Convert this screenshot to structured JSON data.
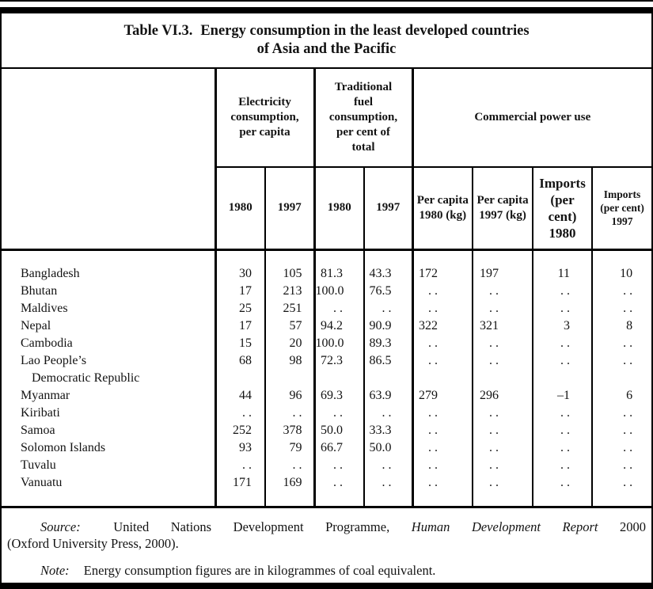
{
  "title": {
    "label": "Table VI.3.",
    "line1": "Energy consumption in the least developed countries",
    "line2": "of Asia and the Pacific"
  },
  "table": {
    "groups": [
      "Electricity consumption, per capita",
      "Traditional fuel consumption, per cent of total",
      "Commercial power use"
    ],
    "columns": [
      "1980",
      "1997",
      "1980",
      "1997",
      "Per capita 1980 (kg)",
      "Per capita 1997 (kg)",
      "Imports (per cent) 1980",
      "Imports (per cent) 1997"
    ],
    "missing_marker": ". .",
    "rows": [
      {
        "country": "Bangladesh",
        "values": [
          "30",
          "105",
          "81.3",
          "43.3",
          "172",
          "197",
          "11",
          "10"
        ]
      },
      {
        "country": "Bhutan",
        "values": [
          "17",
          "213",
          "100.0",
          "76.5",
          ". .",
          ". .",
          ". .",
          ". ."
        ]
      },
      {
        "country": "Maldives",
        "values": [
          "25",
          "251",
          ". .",
          ". .",
          ". .",
          ". .",
          ". .",
          ". ."
        ]
      },
      {
        "country": "Nepal",
        "values": [
          "17",
          "57",
          "94.2",
          "90.9",
          "322",
          "321",
          "3",
          "8"
        ]
      },
      {
        "country": "Cambodia",
        "values": [
          "15",
          "20",
          "100.0",
          "89.3",
          ". .",
          ". .",
          ". .",
          ". ."
        ]
      },
      {
        "country": "Lao People’s",
        "country_line2": "Democratic Republic",
        "values": [
          "68",
          "98",
          "72.3",
          "86.5",
          ". .",
          ". .",
          ". .",
          ". ."
        ]
      },
      {
        "country": "Myanmar",
        "values": [
          "44",
          "96",
          "69.3",
          "63.9",
          "279",
          "296",
          "–1",
          "6"
        ]
      },
      {
        "country": "Kiribati",
        "values": [
          ". .",
          ". .",
          ". .",
          ". .",
          ". .",
          ". .",
          ". .",
          ". ."
        ]
      },
      {
        "country": "Samoa",
        "values": [
          "252",
          "378",
          "50.0",
          "33.3",
          ". .",
          ". .",
          ". .",
          ". ."
        ]
      },
      {
        "country": "Solomon Islands",
        "values": [
          "93",
          "79",
          "66.7",
          "50.0",
          ". .",
          ". .",
          ". .",
          ". ."
        ]
      },
      {
        "country": "Tuvalu",
        "values": [
          ". .",
          ". .",
          ". .",
          ". .",
          ". .",
          ". .",
          ". .",
          ". ."
        ]
      },
      {
        "country": "Vanuatu",
        "values": [
          "171",
          "169",
          ". .",
          ". .",
          ". .",
          ". .",
          ". .",
          ". ."
        ]
      }
    ]
  },
  "footer": {
    "source_label": "Source:",
    "source_text_1": "United Nations Development Programme,",
    "source_italic": "Human Development Report",
    "source_year": "2000",
    "source_line2": "(Oxford University Press, 2000).",
    "note_label": "Note:",
    "note_text": "Energy consumption figures are in kilogrammes of coal equivalent."
  }
}
